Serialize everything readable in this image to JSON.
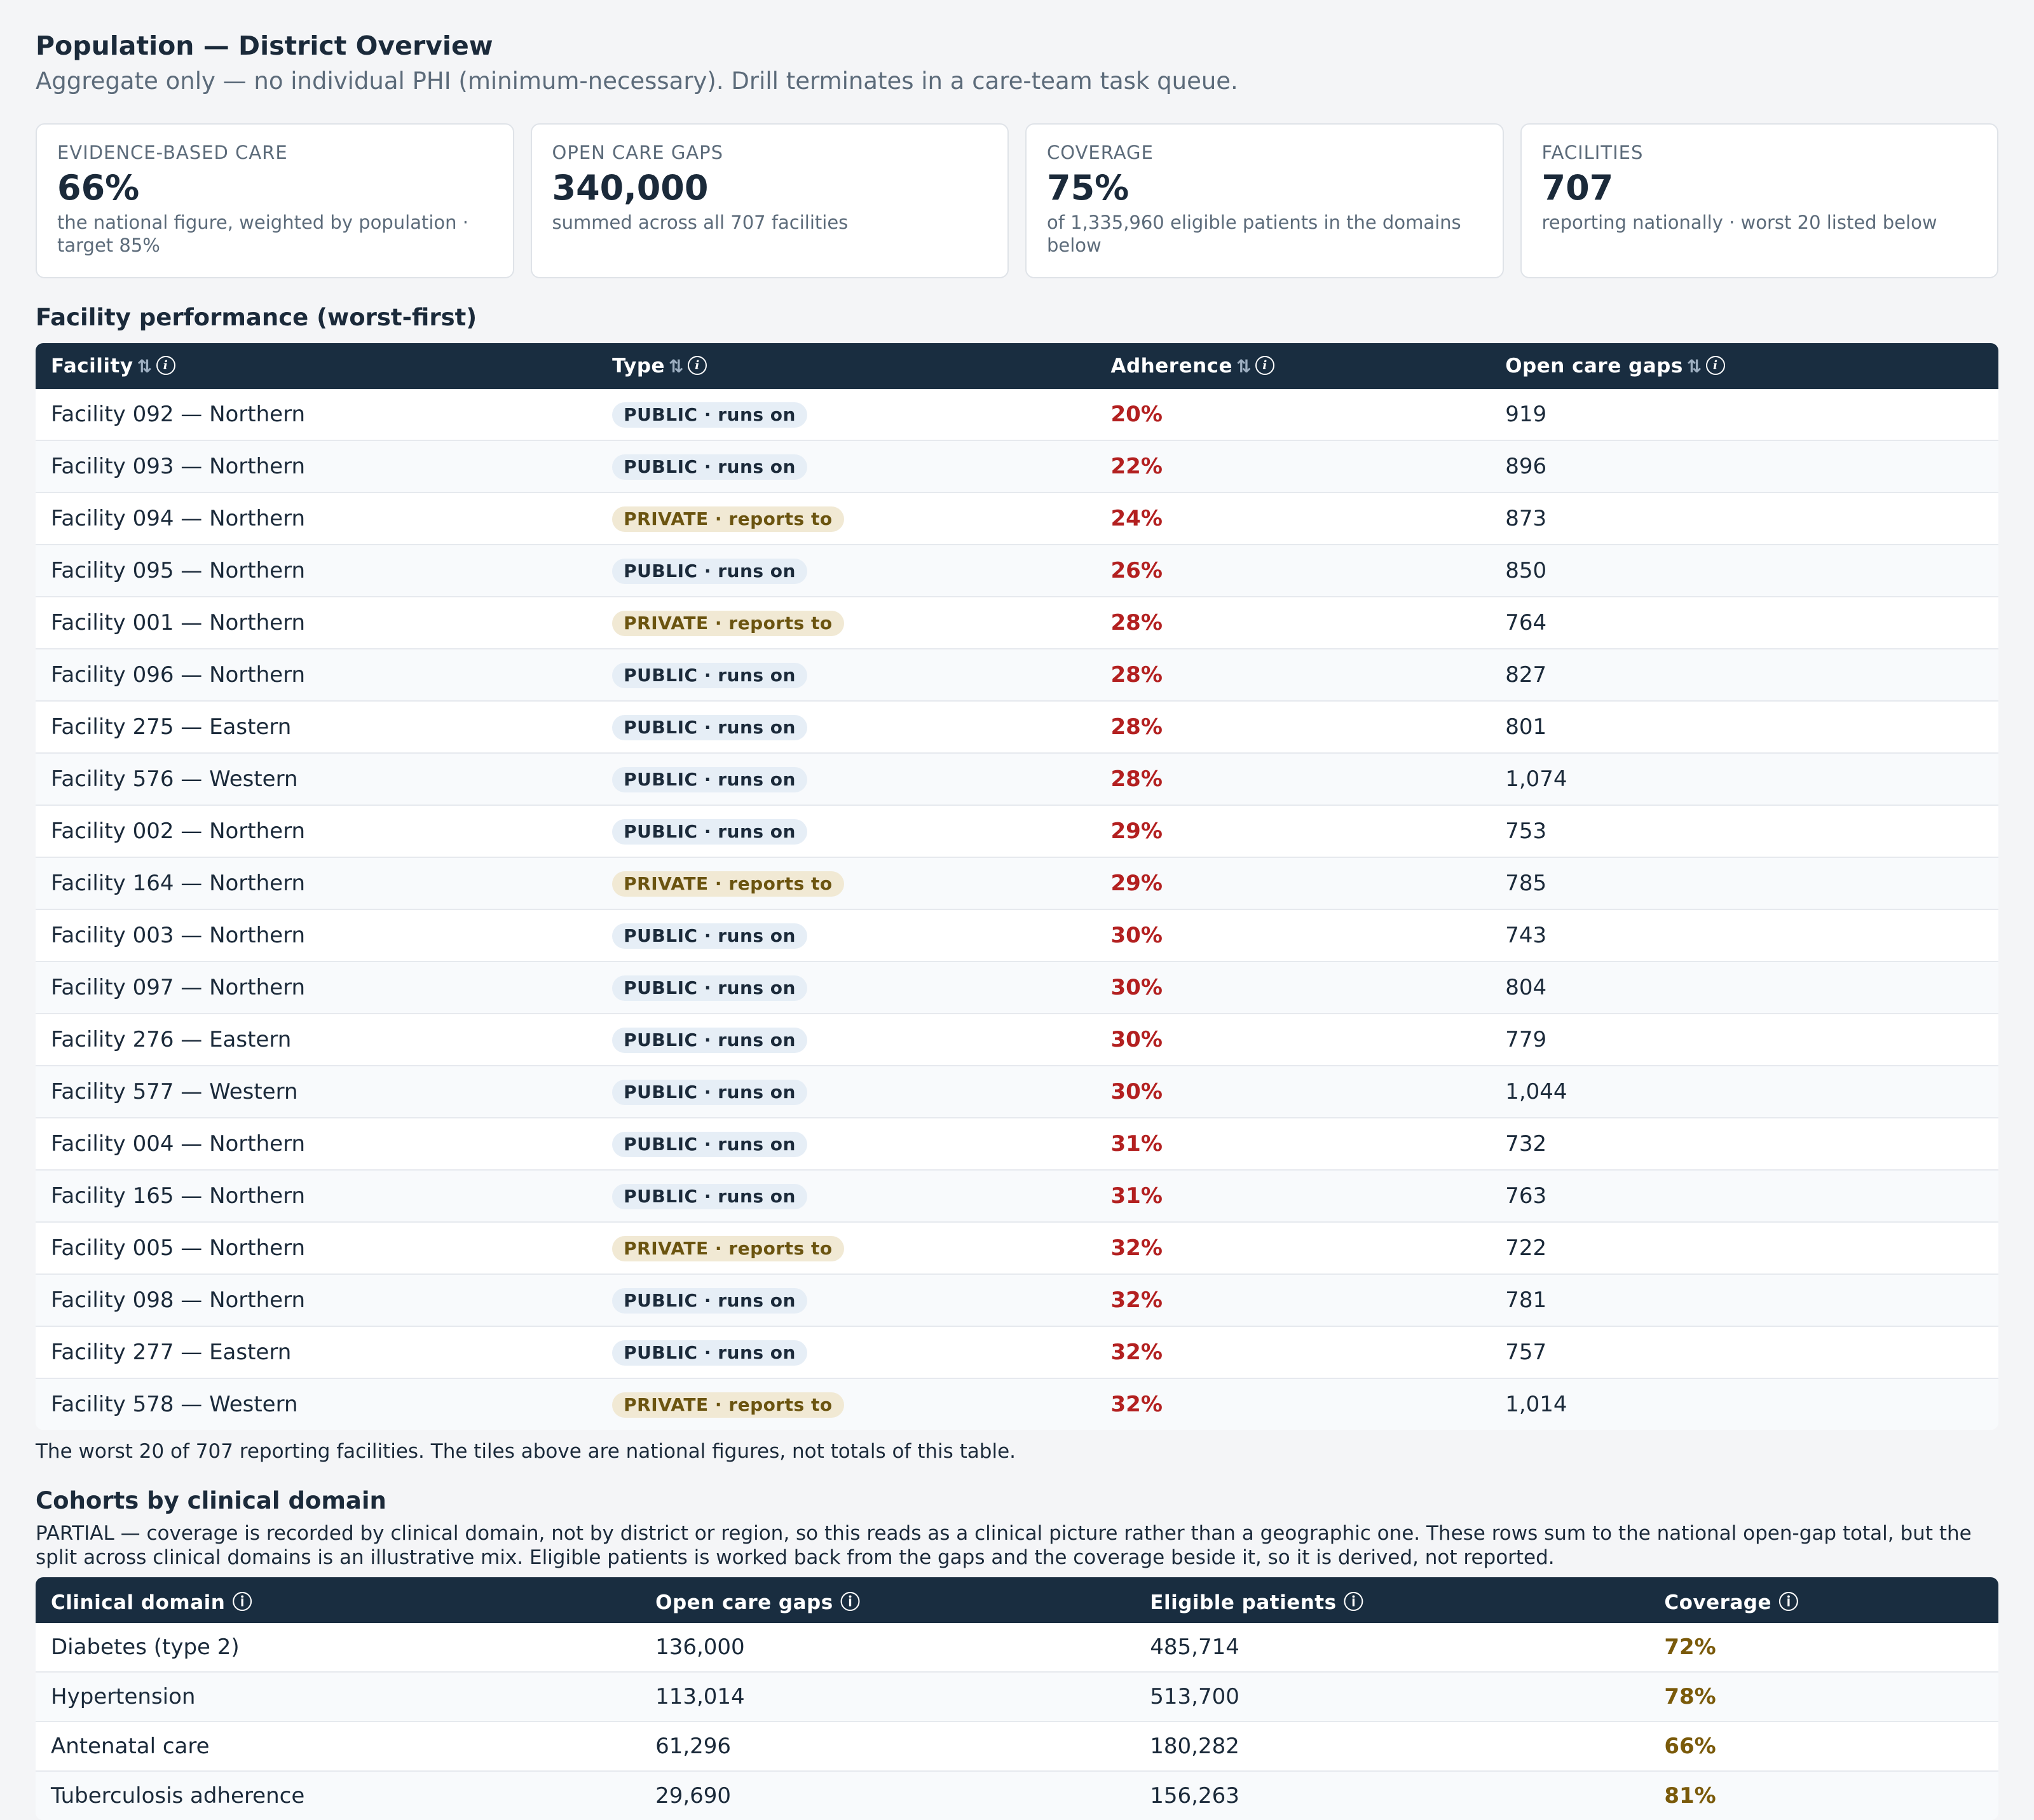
{
  "header": {
    "title": "Population — District Overview",
    "subtitle": "Aggregate only — no individual PHI (minimum-necessary). Drill terminates in a care-team task queue."
  },
  "tiles": [
    {
      "label": "EVIDENCE-BASED CARE",
      "value": "66%",
      "note": "the national figure, weighted by population · target 85%"
    },
    {
      "label": "OPEN CARE GAPS",
      "value": "340,000",
      "note": "summed across all 707 facilities"
    },
    {
      "label": "COVERAGE",
      "value": "75%",
      "note": "of 1,335,960 eligible patients in the domains below"
    },
    {
      "label": "FACILITIES",
      "value": "707",
      "note": "reporting nationally · worst 20 listed below"
    }
  ],
  "facilities": {
    "title": "Facility performance (worst-first)",
    "columns": [
      "Facility",
      "Type",
      "Adherence",
      "Open care gaps"
    ],
    "sort_glyph": "⇅",
    "info_glyph": "i",
    "rows": [
      {
        "facility": "Facility 092 — Northern",
        "type": "PUBLIC · runs on",
        "kind": "public",
        "adherence": "20%",
        "gaps": "919"
      },
      {
        "facility": "Facility 093 — Northern",
        "type": "PUBLIC · runs on",
        "kind": "public",
        "adherence": "22%",
        "gaps": "896"
      },
      {
        "facility": "Facility 094 — Northern",
        "type": "PRIVATE · reports to",
        "kind": "private",
        "adherence": "24%",
        "gaps": "873"
      },
      {
        "facility": "Facility 095 — Northern",
        "type": "PUBLIC · runs on",
        "kind": "public",
        "adherence": "26%",
        "gaps": "850"
      },
      {
        "facility": "Facility 001 — Northern",
        "type": "PRIVATE · reports to",
        "kind": "private",
        "adherence": "28%",
        "gaps": "764"
      },
      {
        "facility": "Facility 096 — Northern",
        "type": "PUBLIC · runs on",
        "kind": "public",
        "adherence": "28%",
        "gaps": "827"
      },
      {
        "facility": "Facility 275 — Eastern",
        "type": "PUBLIC · runs on",
        "kind": "public",
        "adherence": "28%",
        "gaps": "801"
      },
      {
        "facility": "Facility 576 — Western",
        "type": "PUBLIC · runs on",
        "kind": "public",
        "adherence": "28%",
        "gaps": "1,074"
      },
      {
        "facility": "Facility 002 — Northern",
        "type": "PUBLIC · runs on",
        "kind": "public",
        "adherence": "29%",
        "gaps": "753"
      },
      {
        "facility": "Facility 164 — Northern",
        "type": "PRIVATE · reports to",
        "kind": "private",
        "adherence": "29%",
        "gaps": "785"
      },
      {
        "facility": "Facility 003 — Northern",
        "type": "PUBLIC · runs on",
        "kind": "public",
        "adherence": "30%",
        "gaps": "743"
      },
      {
        "facility": "Facility 097 — Northern",
        "type": "PUBLIC · runs on",
        "kind": "public",
        "adherence": "30%",
        "gaps": "804"
      },
      {
        "facility": "Facility 276 — Eastern",
        "type": "PUBLIC · runs on",
        "kind": "public",
        "adherence": "30%",
        "gaps": "779"
      },
      {
        "facility": "Facility 577 — Western",
        "type": "PUBLIC · runs on",
        "kind": "public",
        "adherence": "30%",
        "gaps": "1,044"
      },
      {
        "facility": "Facility 004 — Northern",
        "type": "PUBLIC · runs on",
        "kind": "public",
        "adherence": "31%",
        "gaps": "732"
      },
      {
        "facility": "Facility 165 — Northern",
        "type": "PUBLIC · runs on",
        "kind": "public",
        "adherence": "31%",
        "gaps": "763"
      },
      {
        "facility": "Facility 005 — Northern",
        "type": "PRIVATE · reports to",
        "kind": "private",
        "adherence": "32%",
        "gaps": "722"
      },
      {
        "facility": "Facility 098 — Northern",
        "type": "PUBLIC · runs on",
        "kind": "public",
        "adherence": "32%",
        "gaps": "781"
      },
      {
        "facility": "Facility 277 — Eastern",
        "type": "PUBLIC · runs on",
        "kind": "public",
        "adherence": "32%",
        "gaps": "757"
      },
      {
        "facility": "Facility 578 — Western",
        "type": "PRIVATE · reports to",
        "kind": "private",
        "adherence": "32%",
        "gaps": "1,014"
      }
    ],
    "footnote": "The worst 20 of 707 reporting facilities. The tiles above are national figures, not totals of this table."
  },
  "cohorts": {
    "title": "Cohorts by clinical domain",
    "partial_note": "PARTIAL — coverage is recorded by clinical domain, not by district or region, so this reads as a clinical picture rather than a geographic one. These rows sum to the national open-gap total, but the split across clinical domains is an illustrative mix. Eligible patients is worked back from the gaps and the coverage beside it, so it is derived, not reported.",
    "columns": [
      "Clinical domain",
      "Open care gaps",
      "Eligible patients",
      "Coverage"
    ],
    "info_glyph": "ⓘ",
    "rows": [
      {
        "domain": "Diabetes (type 2)",
        "gaps": "136,000",
        "eligible": "485,714",
        "coverage": "72%"
      },
      {
        "domain": "Hypertension",
        "gaps": "113,014",
        "eligible": "513,700",
        "coverage": "78%"
      },
      {
        "domain": "Antenatal care",
        "gaps": "61,296",
        "eligible": "180,282",
        "coverage": "66%"
      },
      {
        "domain": "Tuberculosis adherence",
        "gaps": "29,690",
        "eligible": "156,263",
        "coverage": "81%"
      }
    ]
  },
  "colors": {
    "header_bg": "#192d40",
    "adherence_red": "#b32020",
    "coverage_amber": "#7a5a0a",
    "public_pill": "#e6eef6",
    "private_pill": "#f1e9d4"
  }
}
